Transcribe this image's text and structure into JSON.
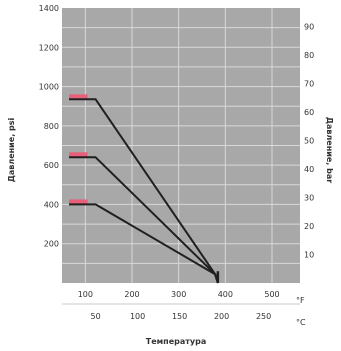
{
  "chart_data": {
    "type": "line",
    "title": "",
    "xlabel": "Температура",
    "ylabel_left": "Давление, psi",
    "ylabel_right": "Давление, bar",
    "x_unit_top": "°F",
    "x_unit_bottom": "°C",
    "x_top_ticks": [
      "100",
      "200",
      "300",
      "400",
      "500"
    ],
    "x_top_range_F": [
      50,
      560
    ],
    "x_bottom_ticks": [
      "50",
      "100",
      "150",
      "200",
      "250"
    ],
    "y_left_ticks": [
      "200",
      "400",
      "600",
      "800",
      "1000",
      "1200",
      "1400"
    ],
    "y_left_range_psi": [
      0,
      1400
    ],
    "y_right_ticks": [
      "10",
      "20",
      "30",
      "40",
      "50",
      "60",
      "70",
      "80",
      "90"
    ],
    "grid": true,
    "series": [
      {
        "label": "",
        "color": "#e85f7a",
        "points_F_psi": [
          [
            65,
            935
          ],
          [
            122,
            935
          ],
          [
            378,
            45
          ],
          [
            384,
            0
          ]
        ]
      },
      {
        "label": "",
        "color": "#e85f7a",
        "points_F_psi": [
          [
            65,
            640
          ],
          [
            122,
            640
          ],
          [
            378,
            45
          ],
          [
            384,
            0
          ]
        ]
      },
      {
        "label": "",
        "color": "#e85f7a",
        "points_F_psi": [
          [
            65,
            400
          ],
          [
            122,
            400
          ],
          [
            378,
            45
          ],
          [
            384,
            0
          ]
        ]
      }
    ],
    "colors": {
      "plot_bg": "#a8a8a8",
      "grid": "#d8d8d8",
      "line": "#202020",
      "highlight": "#e85f7a",
      "divider": "#c8c8c8"
    }
  }
}
